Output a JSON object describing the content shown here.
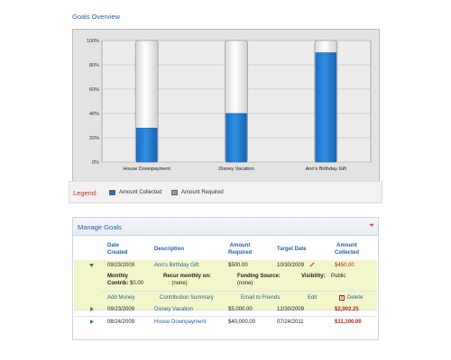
{
  "page": {
    "title": "Goals Overview"
  },
  "chart_data": {
    "type": "bar",
    "categories": [
      "House Downpayment",
      "Disney Vacation",
      "Ann's Birthday Gift"
    ],
    "series": [
      {
        "name": "Amount Collected",
        "values": [
          28,
          40,
          90
        ]
      },
      {
        "name": "Amount Required",
        "values": [
          100,
          100,
          100
        ]
      }
    ],
    "y_ticks": [
      "0%",
      "20%",
      "40%",
      "60%",
      "80%",
      "100%"
    ],
    "ylim": [
      0,
      100
    ],
    "colors": {
      "collected": "#2f8fe0",
      "required": "#ffffff"
    }
  },
  "legend": {
    "title": "Legend:",
    "items": [
      {
        "label": "Amount Collected",
        "color": "#1f6fc4"
      },
      {
        "label": "Amount Required",
        "color": "#9a9a9a"
      }
    ]
  },
  "manage": {
    "title": "Manage Goals",
    "columns": {
      "date_created": "Date\nCreated",
      "description": "Description",
      "amount_required": "Amount\nRequired",
      "target_date": "Target Date",
      "amount_collected": "Amount\nCollected"
    },
    "selected": {
      "date": "09/23/2009",
      "description": "Ann's Birthday Gift",
      "required": "$500.00",
      "target": "10/30/2009",
      "collected": "$450.00",
      "monthly_label": "Monthly",
      "contrib_label": "Contrib:",
      "contrib_value": "$0.00",
      "recur_label": "Recur monthly on:",
      "recur_value": ": (none)",
      "funding_label": "Funding Source:",
      "funding_value": "(none)",
      "visibility_label": "Visibility:",
      "visibility_value": "Public"
    },
    "actions": {
      "add_money": "Add Money",
      "contribution_summary": "Contribution Summary",
      "email_friends": "Email to Friends",
      "edit": "Edit",
      "delete": "Delete"
    },
    "rows": [
      {
        "date": "09/23/2009",
        "description": "Disney Vacation",
        "required": "$5,000.00",
        "target": "12/30/2009",
        "collected": "$2,002.25"
      },
      {
        "date": "08/24/2009",
        "description": "House Downpayment",
        "required": "$40,000.00",
        "target": "07/24/2011",
        "collected": "$11,100.00"
      }
    ]
  }
}
